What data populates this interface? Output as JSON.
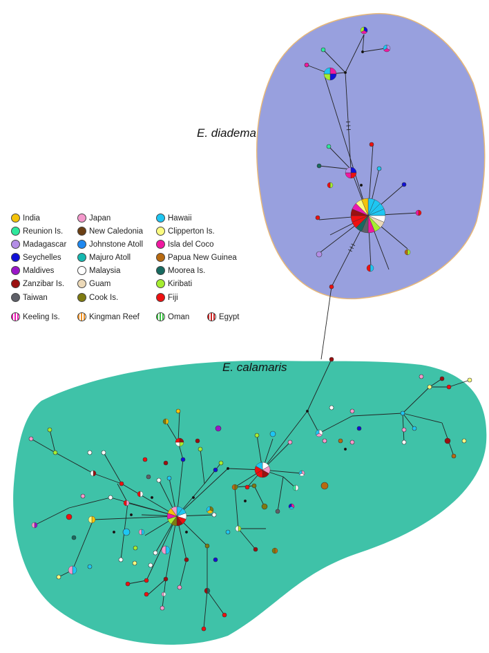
{
  "clade_labels": {
    "diadema": "E. diadema",
    "calamaris": "E. calamaris"
  },
  "colors": {
    "diadema_region": "#98a0de",
    "calamaris_region": "#3fc2a8",
    "edge": "#222222"
  },
  "legend": [
    {
      "label": "India",
      "color": "#f4c30a",
      "pattern": "solid"
    },
    {
      "label": "Reunion Is.",
      "color": "#2ee89c",
      "pattern": "solid"
    },
    {
      "label": "Madagascar",
      "color": "#b48ee6",
      "pattern": "solid"
    },
    {
      "label": "Seychelles",
      "color": "#1010d8",
      "pattern": "solid"
    },
    {
      "label": "Maldives",
      "color": "#9a16c8",
      "pattern": "solid"
    },
    {
      "label": "Zanzibar Is.",
      "color": "#9a1010",
      "pattern": "solid"
    },
    {
      "label": "Taiwan",
      "color": "#5e6068",
      "pattern": "solid"
    },
    {
      "label": "Keeling Is.",
      "color": "#e818b0",
      "pattern": "striped"
    },
    {
      "label": "Japan",
      "color": "#f499cc",
      "pattern": "solid"
    },
    {
      "label": "New Caledonia",
      "color": "#6b3f14",
      "pattern": "solid"
    },
    {
      "label": "Johnstone Atoll",
      "color": "#1e88f0",
      "pattern": "solid"
    },
    {
      "label": "Majuro Atoll",
      "color": "#15b8b0",
      "pattern": "solid"
    },
    {
      "label": "Malaysia",
      "color": "#ffffff",
      "pattern": "solid"
    },
    {
      "label": "Guam",
      "color": "#ecd9b8",
      "pattern": "solid"
    },
    {
      "label": "Cook Is.",
      "color": "#7e7a10",
      "pattern": "solid"
    },
    {
      "label": "Kingman Reef",
      "color": "#f09020",
      "pattern": "striped"
    },
    {
      "label": "Hawaii",
      "color": "#1ec6f2",
      "pattern": "solid"
    },
    {
      "label": "Clipperton Is.",
      "color": "#fbfb80",
      "pattern": "solid"
    },
    {
      "label": "Isla del Coco",
      "color": "#f018a0",
      "pattern": "solid"
    },
    {
      "label": "Papua New Guinea",
      "color": "#b86a10",
      "pattern": "solid"
    },
    {
      "label": "Moorea Is.",
      "color": "#176a60",
      "pattern": "solid"
    },
    {
      "label": "Kiribati",
      "color": "#a6ee30",
      "pattern": "solid"
    },
    {
      "label": "Fiji",
      "color": "#ee1010",
      "pattern": "solid"
    },
    {
      "label": "Oman",
      "color": "#38c040",
      "pattern": "striped"
    },
    {
      "label": "Egypt",
      "color": "#cc2020",
      "pattern": "striped"
    }
  ]
}
